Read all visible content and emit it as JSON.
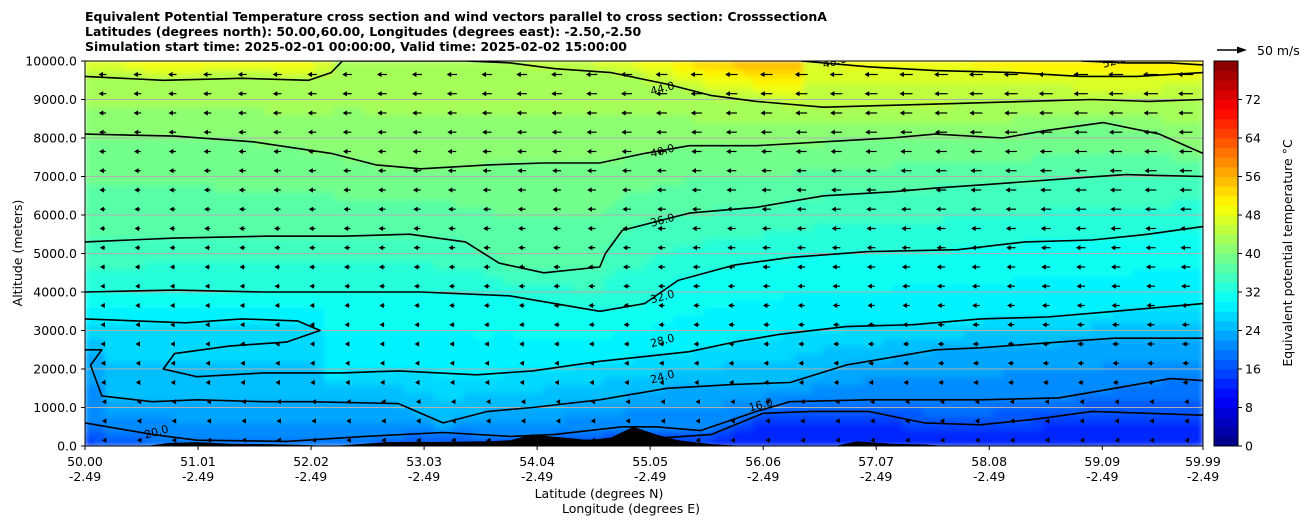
{
  "title": {
    "line1": "Equivalent Potential Temperature cross section and wind vectors parallel to cross section: CrosssectionA",
    "line2": "Latitudes (degrees north): 50.00,60.00, Longitudes (degrees east): -2.50,-2.50",
    "line3": "Simulation start time: 2025-02-01 00:00:00, Valid time: 2025-02-02 15:00:00"
  },
  "chart_data": {
    "type": "heatmap",
    "subtype": "filled-contour cross section with contour lines and wind vectors",
    "ylabel": "Altitude (meters)",
    "xlabel_line1": "Latitude (degrees N)",
    "xlabel_line2": "Longitude (degrees E)",
    "ylim": [
      0,
      10000
    ],
    "xlim": [
      50.0,
      59.99
    ],
    "y_ticks": [
      "0.0",
      "1000.0",
      "2000.0",
      "3000.0",
      "4000.0",
      "5000.0",
      "6000.0",
      "7000.0",
      "8000.0",
      "9000.0",
      "10000.0"
    ],
    "x_ticks": [
      {
        "lat": "50.00",
        "lon": "-2.49"
      },
      {
        "lat": "51.01",
        "lon": "-2.49"
      },
      {
        "lat": "52.02",
        "lon": "-2.49"
      },
      {
        "lat": "53.03",
        "lon": "-2.49"
      },
      {
        "lat": "54.04",
        "lon": "-2.49"
      },
      {
        "lat": "55.05",
        "lon": "-2.49"
      },
      {
        "lat": "56.06",
        "lon": "-2.49"
      },
      {
        "lat": "57.07",
        "lon": "-2.49"
      },
      {
        "lat": "58.08",
        "lon": "-2.49"
      },
      {
        "lat": "59.09",
        "lon": "-2.49"
      },
      {
        "lat": "59.99",
        "lon": "-2.49"
      }
    ],
    "colorbar": {
      "label": "Equivalent potential temperature $^\\circ$C",
      "label_display": "Equivalent potential temperature °C",
      "min": 0,
      "max": 80,
      "tick_values": [
        0,
        8,
        16,
        24,
        32,
        40,
        48,
        56,
        64,
        72
      ],
      "tick_labels": [
        "0",
        "8",
        "16",
        "24",
        "32",
        "40",
        "48",
        "56",
        "64",
        "72"
      ],
      "colormap": "jet"
    },
    "quiver_key": {
      "label": "50 m/s",
      "speed": 50
    },
    "contour_lines": [
      {
        "value": 20,
        "label": "20.0",
        "points": [
          [
            50.0,
            600
          ],
          [
            50.6,
            300
          ],
          [
            51.0,
            150
          ],
          [
            51.8,
            120
          ],
          [
            52.5,
            250
          ],
          [
            53.2,
            350
          ],
          [
            53.8,
            250
          ],
          [
            54.2,
            300
          ],
          [
            54.8,
            500
          ],
          [
            55.1,
            500
          ],
          [
            55.5,
            400
          ],
          [
            56.0,
            900
          ],
          [
            56.3,
            1150
          ],
          [
            57.0,
            1200
          ],
          [
            58.0,
            1200
          ],
          [
            58.7,
            1250
          ],
          [
            59.2,
            1500
          ],
          [
            59.7,
            1750
          ],
          [
            59.99,
            1700
          ]
        ],
        "label_at": [
          50.64,
          350
        ]
      },
      {
        "value": 16,
        "label": "16.0",
        "points": [
          [
            52.6,
            0
          ],
          [
            53.0,
            80
          ],
          [
            53.6,
            100
          ],
          [
            54.2,
            120
          ],
          [
            55.1,
            200
          ],
          [
            55.6,
            300
          ],
          [
            56.06,
            850
          ],
          [
            56.5,
            900
          ],
          [
            57.0,
            900
          ],
          [
            57.5,
            600
          ],
          [
            58.0,
            550
          ],
          [
            58.5,
            700
          ],
          [
            59.0,
            900
          ],
          [
            59.5,
            850
          ],
          [
            59.99,
            800
          ]
        ],
        "label_at": [
          56.04,
          1050
        ]
      },
      {
        "value": 24,
        "label": "24.0",
        "points": [
          [
            50.0,
            2500
          ],
          [
            50.15,
            2500
          ],
          [
            50.05,
            2100
          ],
          [
            50.15,
            1300
          ],
          [
            50.6,
            1150
          ],
          [
            51.0,
            1200
          ],
          [
            51.6,
            1150
          ],
          [
            52.0,
            1150
          ],
          [
            52.8,
            1100
          ],
          [
            53.2,
            600
          ],
          [
            53.6,
            900
          ],
          [
            54.0,
            1000
          ],
          [
            54.6,
            1200
          ],
          [
            55.2,
            1500
          ],
          [
            55.8,
            1600
          ],
          [
            56.3,
            1650
          ],
          [
            56.8,
            2100
          ],
          [
            57.2,
            2300
          ],
          [
            57.6,
            2500
          ],
          [
            58.0,
            2550
          ],
          [
            58.7,
            2700
          ],
          [
            59.2,
            2800
          ],
          [
            59.99,
            2800
          ]
        ],
        "label_at": [
          55.16,
          1780
        ]
      },
      {
        "value": 28,
        "label": "28.0",
        "points": [
          [
            50.0,
            3300
          ],
          [
            50.9,
            3200
          ],
          [
            51.4,
            3300
          ],
          [
            51.9,
            3250
          ],
          [
            52.1,
            3000
          ],
          [
            51.8,
            2700
          ],
          [
            51.3,
            2600
          ],
          [
            50.8,
            2400
          ],
          [
            50.7,
            2000
          ],
          [
            51.0,
            1800
          ],
          [
            51.6,
            1900
          ],
          [
            52.3,
            1900
          ],
          [
            52.8,
            1950
          ],
          [
            53.5,
            1850
          ],
          [
            54.0,
            1950
          ],
          [
            54.6,
            2200
          ],
          [
            55.4,
            2450
          ],
          [
            55.8,
            2700
          ],
          [
            56.2,
            2900
          ],
          [
            56.8,
            3100
          ],
          [
            57.4,
            3150
          ],
          [
            58.0,
            3300
          ],
          [
            58.6,
            3350
          ],
          [
            59.2,
            3500
          ],
          [
            59.99,
            3700
          ]
        ],
        "label_at": [
          55.16,
          2720
        ]
      },
      {
        "value": 32,
        "label": "32.0",
        "points": [
          [
            50.0,
            4000
          ],
          [
            50.8,
            4050
          ],
          [
            51.6,
            4000
          ],
          [
            52.4,
            4000
          ],
          [
            53.0,
            4000
          ],
          [
            53.8,
            3900
          ],
          [
            54.6,
            3500
          ],
          [
            55.0,
            3700
          ],
          [
            55.3,
            4300
          ],
          [
            55.8,
            4700
          ],
          [
            56.3,
            4900
          ],
          [
            57.0,
            5050
          ],
          [
            57.8,
            5100
          ],
          [
            58.4,
            5300
          ],
          [
            59.0,
            5350
          ],
          [
            59.5,
            5500
          ],
          [
            59.99,
            5700
          ]
        ],
        "label_at": [
          55.16,
          3860
        ]
      },
      {
        "value": 36,
        "label": "36.0",
        "points": [
          [
            50.0,
            5300
          ],
          [
            50.8,
            5400
          ],
          [
            51.6,
            5450
          ],
          [
            52.3,
            5450
          ],
          [
            52.9,
            5500
          ],
          [
            53.4,
            5300
          ],
          [
            53.7,
            4750
          ],
          [
            54.1,
            4500
          ],
          [
            54.6,
            4650
          ],
          [
            54.65,
            5000
          ],
          [
            54.8,
            5600
          ],
          [
            55.4,
            6050
          ],
          [
            56.0,
            6200
          ],
          [
            56.6,
            6500
          ],
          [
            57.2,
            6600
          ],
          [
            57.6,
            6700
          ],
          [
            58.1,
            6800
          ],
          [
            58.8,
            6950
          ],
          [
            59.3,
            7050
          ],
          [
            59.99,
            7000
          ]
        ],
        "label_at": [
          55.16,
          5850
        ]
      },
      {
        "value": 40,
        "label": "40.0",
        "points": [
          [
            50.0,
            8100
          ],
          [
            50.8,
            8050
          ],
          [
            51.5,
            7900
          ],
          [
            52.2,
            7600
          ],
          [
            52.6,
            7300
          ],
          [
            53.0,
            7200
          ],
          [
            53.6,
            7300
          ],
          [
            54.1,
            7350
          ],
          [
            54.6,
            7350
          ],
          [
            55.0,
            7600
          ],
          [
            55.4,
            7800
          ],
          [
            56.0,
            7800
          ],
          [
            56.6,
            7900
          ],
          [
            57.2,
            8000
          ],
          [
            57.6,
            8100
          ],
          [
            58.2,
            8000
          ],
          [
            58.6,
            8200
          ],
          [
            59.1,
            8400
          ],
          [
            59.6,
            8100
          ],
          [
            59.99,
            7600
          ]
        ],
        "label_at": [
          55.16,
          7650
        ]
      },
      {
        "value": 44,
        "label": "44.0",
        "points": [
          [
            50.0,
            9600
          ],
          [
            50.7,
            9500
          ],
          [
            51.4,
            9550
          ],
          [
            52.0,
            9500
          ],
          [
            52.2,
            9700
          ],
          [
            52.3,
            10000
          ],
          [
            53.4,
            10000
          ],
          [
            53.8,
            9950
          ],
          [
            54.2,
            9800
          ],
          [
            54.7,
            9700
          ],
          [
            55.2,
            9400
          ],
          [
            55.6,
            9100
          ],
          [
            56.0,
            8950
          ],
          [
            56.6,
            8800
          ],
          [
            57.2,
            8850
          ],
          [
            57.8,
            8900
          ],
          [
            58.4,
            8950
          ],
          [
            59.0,
            9000
          ],
          [
            59.5,
            8950
          ],
          [
            59.99,
            9000
          ]
        ],
        "label_at": [
          55.16,
          9270
        ]
      },
      {
        "value": 48,
        "label": "48.0",
        "points": [
          [
            56.4,
            10000
          ],
          [
            57.0,
            9850
          ],
          [
            57.6,
            9750
          ],
          [
            58.3,
            9700
          ],
          [
            58.9,
            9600
          ],
          [
            59.4,
            9600
          ],
          [
            59.99,
            9700
          ]
        ],
        "label_at": [
          56.7,
          9970
        ]
      },
      {
        "value": 52,
        "label": "52.0",
        "points": [
          [
            58.9,
            10000
          ],
          [
            59.3,
            9950
          ],
          [
            59.7,
            9950
          ],
          [
            59.99,
            9900
          ]
        ],
        "label_at": [
          59.2,
          9980
        ]
      }
    ],
    "vector_field_description": "wind vectors parallel to cross section, mostly pointing toward lower latitude (southward), stronger aloft and at higher latitudes"
  }
}
